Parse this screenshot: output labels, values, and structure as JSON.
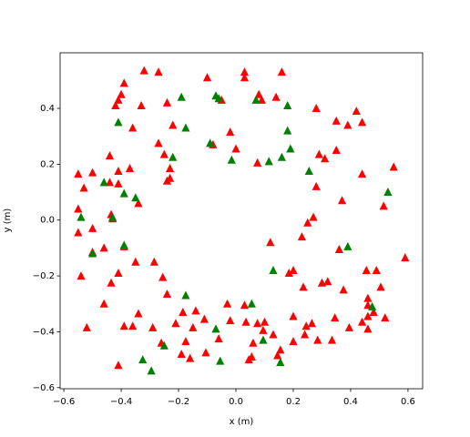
{
  "chart_data": {
    "type": "scatter",
    "xlabel": "x (m)",
    "ylabel": "y (m)",
    "xlim": [
      -0.613,
      0.651
    ],
    "ylim": [
      -0.604,
      0.599
    ],
    "xticks": [
      {
        "value": -0.6,
        "label": "−0.6"
      },
      {
        "value": -0.4,
        "label": "−0.4"
      },
      {
        "value": -0.2,
        "label": "−0.2"
      },
      {
        "value": 0,
        "label": "0.0"
      },
      0.2,
      0.4,
      0.6
    ],
    "yticks": [
      {
        "value": -0.6,
        "label": "−0.6"
      },
      {
        "value": -0.4,
        "label": "−0.4"
      },
      {
        "value": -0.2,
        "label": "−0.2"
      },
      {
        "value": 0,
        "label": "0.0"
      },
      0.2,
      0.4
    ],
    "marker": "triangle",
    "series": [
      {
        "color": "#ff0000",
        "x": [
          -0.32,
          -0.27,
          -0.1,
          0.03,
          0.03,
          0.16,
          -0.39,
          -0.4,
          -0.41,
          -0.42,
          -0.33,
          -0.24,
          -0.05,
          0.08,
          0.09,
          0.14,
          0.28,
          0.35,
          0.39,
          0.42,
          0.44,
          -0.36,
          -0.22,
          -0.02,
          -0.08,
          0.0,
          -0.27,
          -0.25,
          -0.23,
          -0.24,
          -0.23,
          -0.44,
          -0.41,
          -0.37,
          -0.41,
          -0.55,
          -0.5,
          -0.53,
          -0.44,
          0.075,
          0.29,
          0.31,
          0.35,
          0.28,
          0.44,
          0.55,
          0.37,
          0.515,
          0.27,
          0.25,
          0.23,
          -0.55,
          -0.55,
          -0.5,
          -0.435,
          -0.43,
          -0.34,
          -0.39,
          -0.46,
          -0.5,
          -0.54,
          -0.41,
          -0.435,
          -0.35,
          -0.285,
          -0.255,
          -0.24,
          -0.46,
          -0.52,
          -0.39,
          -0.36,
          -0.34,
          -0.29,
          -0.41,
          -0.26,
          -0.21,
          -0.185,
          -0.14,
          -0.11,
          -0.175,
          -0.15,
          -0.19,
          -0.16,
          -0.105,
          -0.06,
          -0.03,
          0.03,
          0.035,
          0.075,
          0.1,
          0.13,
          0.095,
          0.06,
          0.045,
          0.055,
          0.145,
          0.155,
          0.2,
          0.2,
          0.24,
          0.245,
          0.265,
          0.285,
          0.335,
          0.345,
          0.395,
          0.44,
          0.46,
          0.48,
          0.46,
          0.46,
          0.46,
          0.52,
          0.505,
          0.235,
          0.3,
          0.375,
          0.49,
          0.455,
          0.32,
          0.185,
          0.2,
          0.36,
          0.59,
          0.12,
          -0.02
        ],
        "values": [
          0.535,
          0.53,
          0.51,
          0.53,
          0.51,
          0.53,
          0.49,
          0.45,
          0.43,
          0.41,
          0.41,
          0.42,
          0.43,
          0.45,
          0.43,
          0.44,
          0.4,
          0.355,
          0.34,
          0.39,
          0.35,
          0.33,
          0.34,
          0.315,
          0.27,
          0.255,
          0.275,
          0.235,
          0.185,
          0.14,
          0.15,
          0.23,
          0.175,
          0.185,
          0.13,
          0.165,
          0.17,
          0.115,
          0.135,
          0.205,
          0.235,
          0.22,
          0.25,
          0.12,
          0.165,
          0.19,
          0.07,
          0.05,
          0.01,
          -0.01,
          -0.06,
          0.04,
          -0.045,
          -0.03,
          0.02,
          0.005,
          0.06,
          -0.095,
          -0.1,
          -0.115,
          -0.2,
          -0.19,
          -0.225,
          -0.15,
          -0.15,
          -0.205,
          -0.265,
          -0.3,
          -0.385,
          -0.38,
          -0.38,
          -0.335,
          -0.385,
          -0.52,
          -0.44,
          -0.37,
          -0.33,
          -0.325,
          -0.355,
          -0.435,
          -0.385,
          -0.48,
          -0.495,
          -0.475,
          -0.425,
          -0.3,
          -0.305,
          -0.365,
          -0.37,
          -0.365,
          -0.41,
          -0.395,
          -0.44,
          -0.5,
          -0.49,
          -0.485,
          -0.465,
          -0.345,
          -0.435,
          -0.41,
          -0.38,
          -0.37,
          -0.43,
          -0.43,
          -0.35,
          -0.385,
          -0.365,
          -0.345,
          -0.33,
          -0.39,
          -0.305,
          -0.28,
          -0.35,
          -0.24,
          -0.24,
          -0.225,
          -0.25,
          -0.18,
          -0.18,
          -0.22,
          -0.19,
          -0.18,
          -0.105,
          -0.135,
          -0.08,
          -0.36
        ]
      },
      {
        "color": "#008000",
        "x": [
          -0.19,
          -0.07,
          -0.06,
          0.07,
          0.18,
          -0.41,
          -0.175,
          0.18,
          -0.09,
          -0.22,
          -0.015,
          0.115,
          0.19,
          0.16,
          0.255,
          -0.46,
          -0.39,
          -0.35,
          0.53,
          -0.54,
          -0.43,
          -0.5,
          -0.39,
          0.39,
          0.13,
          -0.175,
          0.055,
          0.475,
          -0.07,
          0.095,
          -0.25,
          -0.325,
          -0.055,
          -0.295,
          0.155
        ],
        "values": [
          0.44,
          0.445,
          0.435,
          0.43,
          0.41,
          0.35,
          0.33,
          0.32,
          0.275,
          0.225,
          0.215,
          0.21,
          0.255,
          0.225,
          0.175,
          0.135,
          0.095,
          0.08,
          0.1,
          0.01,
          0.01,
          -0.12,
          -0.09,
          -0.095,
          -0.18,
          -0.27,
          -0.3,
          -0.31,
          -0.39,
          -0.43,
          -0.45,
          -0.5,
          -0.505,
          -0.54,
          -0.51
        ]
      }
    ]
  }
}
